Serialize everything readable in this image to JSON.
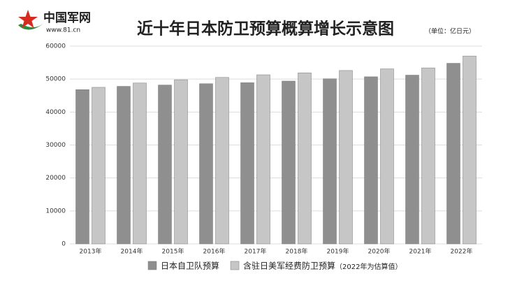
{
  "logo": {
    "name": "中国军网",
    "url": "www.81.cn"
  },
  "chart_data": {
    "type": "bar",
    "title": "近十年日本防卫预算概算增长示意图",
    "unit": "（单位：亿日元）",
    "categories": [
      "2013年",
      "2014年",
      "2015年",
      "2016年",
      "2017年",
      "2018年",
      "2019年",
      "2020年",
      "2021年",
      "2022年"
    ],
    "series": [
      {
        "name": "日本自卫队预算",
        "color": "#8f8f8f",
        "values": [
          46800,
          47800,
          48200,
          48600,
          48900,
          49400,
          50100,
          50700,
          51200,
          54800
        ]
      },
      {
        "name": "含驻日美军经费防卫预算",
        "color": "#c6c6c6",
        "values": [
          47500,
          48800,
          49800,
          50500,
          51300,
          51900,
          52600,
          53100,
          53400,
          57000
        ]
      }
    ],
    "legend_note": "（2022年为估算值）",
    "ylim": [
      0,
      60000
    ],
    "yticks": [
      0,
      10000,
      20000,
      30000,
      40000,
      50000,
      60000
    ],
    "grid": true
  }
}
